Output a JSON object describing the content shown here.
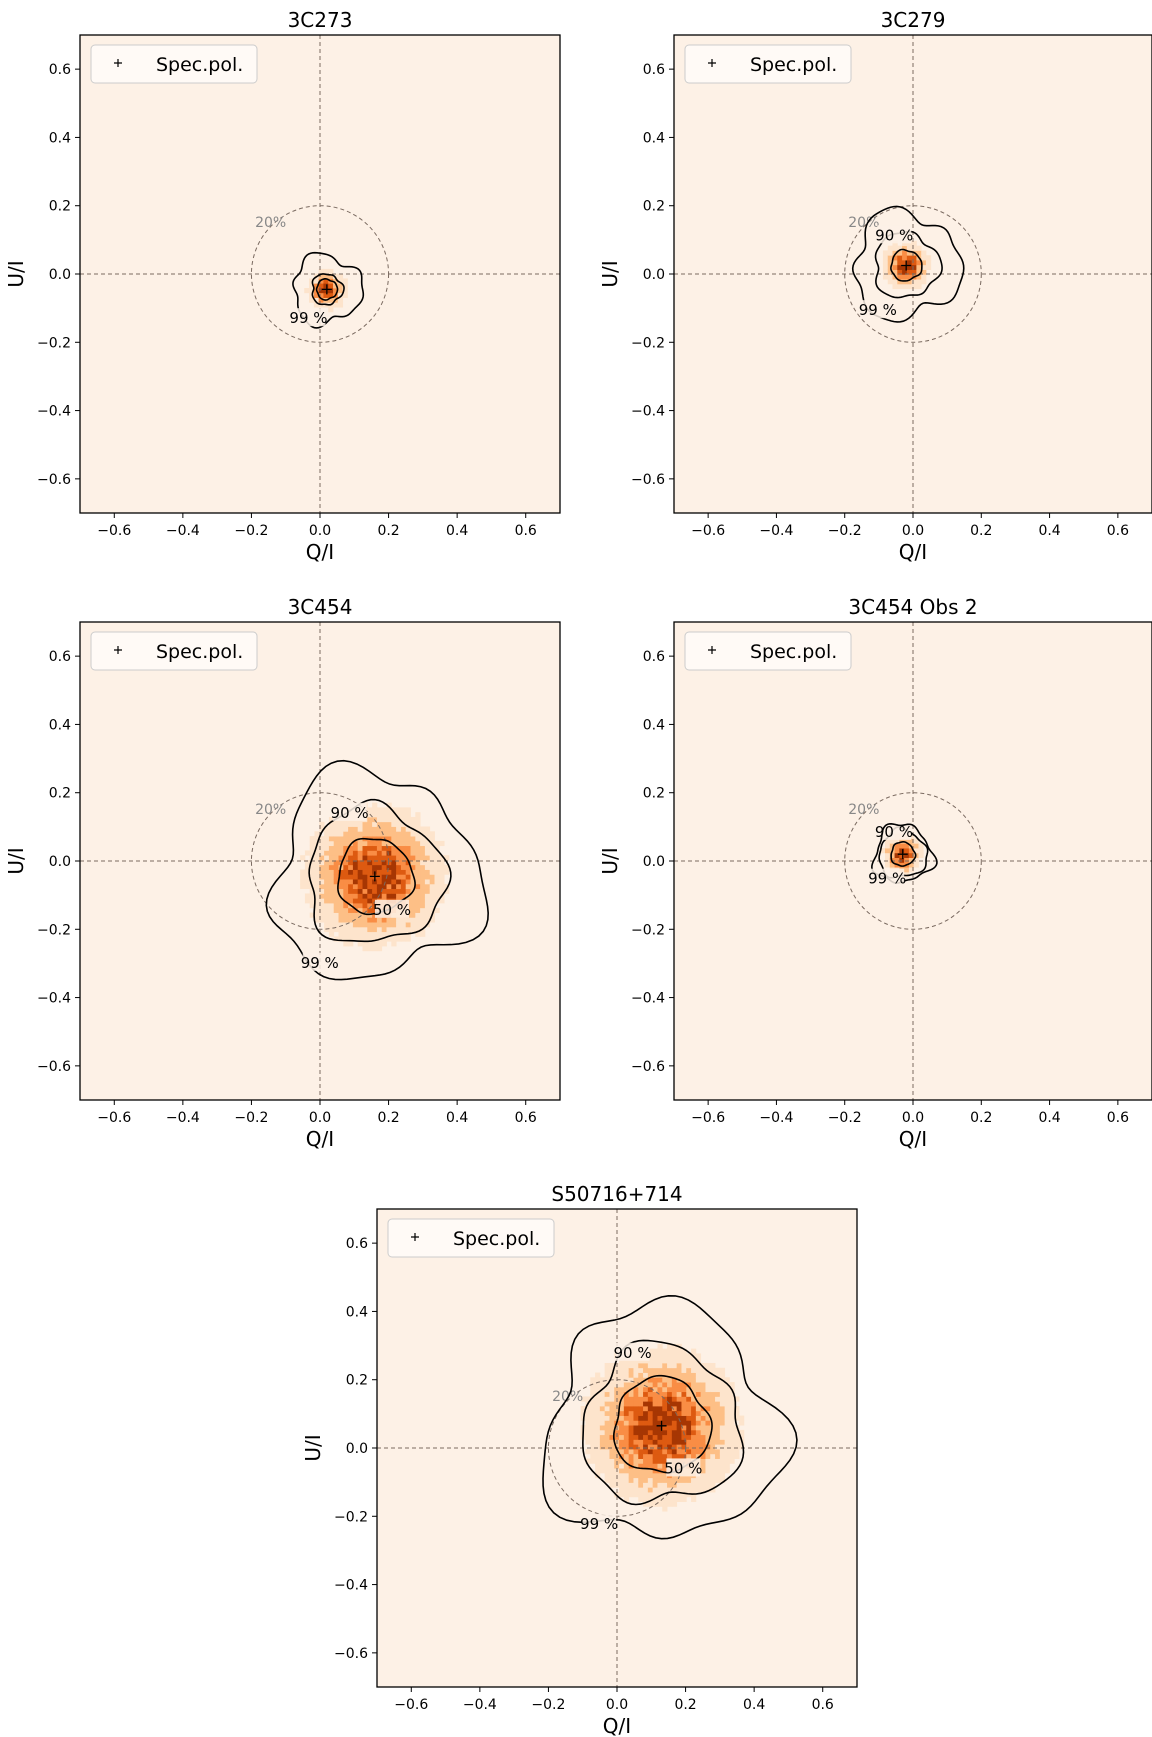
{
  "colors": {
    "background": "#fdf1e6",
    "heat": [
      "#fde4cc",
      "#fdbf86",
      "#f98d45",
      "#dd5a11",
      "#a63603"
    ],
    "reference_lines": "#7a6a60",
    "contours": "#000000",
    "circle_label": "#888888"
  },
  "chart_data": [
    {
      "type": "heatmap",
      "title": "3C273",
      "xlabel": "Q/I",
      "ylabel": "U/I",
      "xlim": [
        -0.7,
        0.7
      ],
      "ylim": [
        -0.7,
        0.7
      ],
      "xticks": [
        -0.6,
        -0.4,
        -0.2,
        0.0,
        0.2,
        0.4,
        0.6
      ],
      "yticks": [
        -0.6,
        -0.4,
        -0.2,
        0.0,
        0.2,
        0.4,
        0.6
      ],
      "legend": {
        "label": "Spec.pol.",
        "marker": "+",
        "position": "upper left"
      },
      "spec_pol": {
        "q": 0.02,
        "u": -0.045
      },
      "spread": 0.025,
      "reference_circle": {
        "radius": 0.2,
        "label": "20%"
      },
      "contours": [
        {
          "label": "50 %",
          "radius": 0.03,
          "label_shown": false
        },
        {
          "label": "90 %",
          "radius": 0.045,
          "label_shown": false
        },
        {
          "label": "99 %",
          "radius": 0.1,
          "label_shown": true
        }
      ]
    },
    {
      "type": "heatmap",
      "title": "3C279",
      "xlabel": "Q/I",
      "ylabel": "U/I",
      "xlim": [
        -0.7,
        0.7
      ],
      "ylim": [
        -0.7,
        0.7
      ],
      "xticks": [
        -0.6,
        -0.4,
        -0.2,
        0.0,
        0.2,
        0.4,
        0.6
      ],
      "yticks": [
        -0.6,
        -0.4,
        -0.2,
        0.0,
        0.2,
        0.4,
        0.6
      ],
      "legend": {
        "label": "Spec.pol.",
        "marker": "+",
        "position": "upper left"
      },
      "spec_pol": {
        "q": -0.02,
        "u": 0.025
      },
      "spread": 0.03,
      "reference_circle": {
        "radius": 0.2,
        "label": "20%"
      },
      "contours": [
        {
          "label": "50 %",
          "radius": 0.045,
          "label_shown": false
        },
        {
          "label": "90 %",
          "radius": 0.095,
          "label_shown": true
        },
        {
          "label": "99 %",
          "radius": 0.155,
          "label_shown": true
        }
      ]
    },
    {
      "type": "heatmap",
      "title": "3C454",
      "xlabel": "Q/I",
      "ylabel": "U/I",
      "xlim": [
        -0.7,
        0.7
      ],
      "ylim": [
        -0.7,
        0.7
      ],
      "xticks": [
        -0.6,
        -0.4,
        -0.2,
        0.0,
        0.2,
        0.4,
        0.6
      ],
      "yticks": [
        -0.6,
        -0.4,
        -0.2,
        0.0,
        0.2,
        0.4,
        0.6
      ],
      "legend": {
        "label": "Spec.pol.",
        "marker": "+",
        "position": "upper left"
      },
      "spec_pol": {
        "q": 0.16,
        "u": -0.045
      },
      "spread": 0.09,
      "reference_circle": {
        "radius": 0.2,
        "label": "20%"
      },
      "contours": [
        {
          "label": "50 %",
          "radius": 0.11,
          "label_shown": true
        },
        {
          "label": "90 %",
          "radius": 0.2,
          "label_shown": true
        },
        {
          "label": "99 %",
          "radius": 0.3,
          "label_shown": true
        }
      ]
    },
    {
      "type": "heatmap",
      "title": "3C454 Obs 2",
      "xlabel": "Q/I",
      "ylabel": "U/I",
      "xlim": [
        -0.7,
        0.7
      ],
      "ylim": [
        -0.7,
        0.7
      ],
      "xticks": [
        -0.6,
        -0.4,
        -0.2,
        0.0,
        0.2,
        0.4,
        0.6
      ],
      "yticks": [
        -0.6,
        -0.4,
        -0.2,
        0.0,
        0.2,
        0.4,
        0.6
      ],
      "legend": {
        "label": "Spec.pol.",
        "marker": "+",
        "position": "upper left"
      },
      "spec_pol": {
        "q": -0.03,
        "u": 0.02
      },
      "spread": 0.025,
      "reference_circle": {
        "radius": 0.2,
        "label": "20%"
      },
      "contours": [
        {
          "label": "50 %",
          "radius": 0.035,
          "label_shown": false
        },
        {
          "label": "90 %",
          "radius": 0.07,
          "label_shown": true
        },
        {
          "label": "99 %",
          "radius": 0.085,
          "label_shown": true
        }
      ]
    },
    {
      "type": "heatmap",
      "title": "S50716+714",
      "xlabel": "Q/I",
      "ylabel": "U/I",
      "xlim": [
        -0.7,
        0.7
      ],
      "ylim": [
        -0.7,
        0.7
      ],
      "xticks": [
        -0.6,
        -0.4,
        -0.2,
        0.0,
        0.2,
        0.4,
        0.6
      ],
      "yticks": [
        -0.6,
        -0.4,
        -0.2,
        0.0,
        0.2,
        0.4,
        0.6
      ],
      "legend": {
        "label": "Spec.pol.",
        "marker": "+",
        "position": "upper left"
      },
      "spec_pol": {
        "q": 0.13,
        "u": 0.065
      },
      "spread": 0.1,
      "reference_circle": {
        "radius": 0.2,
        "label": "20%"
      },
      "contours": [
        {
          "label": "50 %",
          "radius": 0.14,
          "label_shown": true
        },
        {
          "label": "90 %",
          "radius": 0.23,
          "label_shown": true
        },
        {
          "label": "99 %",
          "radius": 0.34,
          "label_shown": true
        }
      ]
    }
  ]
}
